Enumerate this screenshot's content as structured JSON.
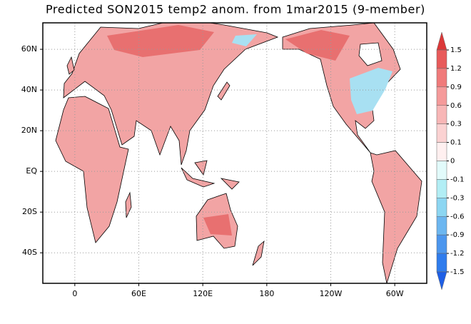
{
  "header": {
    "title": "Predicted SON2015 temp2 anom. from 1mar2015 (9-member)"
  },
  "map": {
    "xlim": [
      -30,
      330
    ],
    "ylim": [
      -55,
      73
    ],
    "xticks": [
      0,
      {
        "value": 60,
        "label": "60E"
      },
      {
        "value": 120,
        "label": "120E"
      },
      180,
      {
        "value": 240,
        "label": "120W"
      },
      {
        "value": 300,
        "label": "60W"
      }
    ],
    "yticks": [
      {
        "value": 60,
        "label": "60N"
      },
      {
        "value": 40,
        "label": "40N"
      },
      {
        "value": 20,
        "label": "20N"
      },
      {
        "value": 0,
        "label": "EQ"
      },
      {
        "value": -20,
        "label": "20S"
      },
      {
        "value": -40,
        "label": "40S"
      }
    ],
    "grid": true
  },
  "colorbar": {
    "levels": [
      1.5,
      1.2,
      0.9,
      0.6,
      0.3,
      0.1,
      0,
      -0.1,
      -0.3,
      -0.6,
      -0.9,
      -1.2,
      -1.5
    ],
    "colors": [
      "#dc3838",
      "#e85a5a",
      "#f07a7a",
      "#f59a9a",
      "#f8b6b6",
      "#fbd2d2",
      "#fff0f0",
      "#e2fbfb",
      "#b2eef5",
      "#8cd6f2",
      "#6cb6f0",
      "#4c96ee",
      "#2f7ced",
      "#1e5fe6"
    ]
  }
}
